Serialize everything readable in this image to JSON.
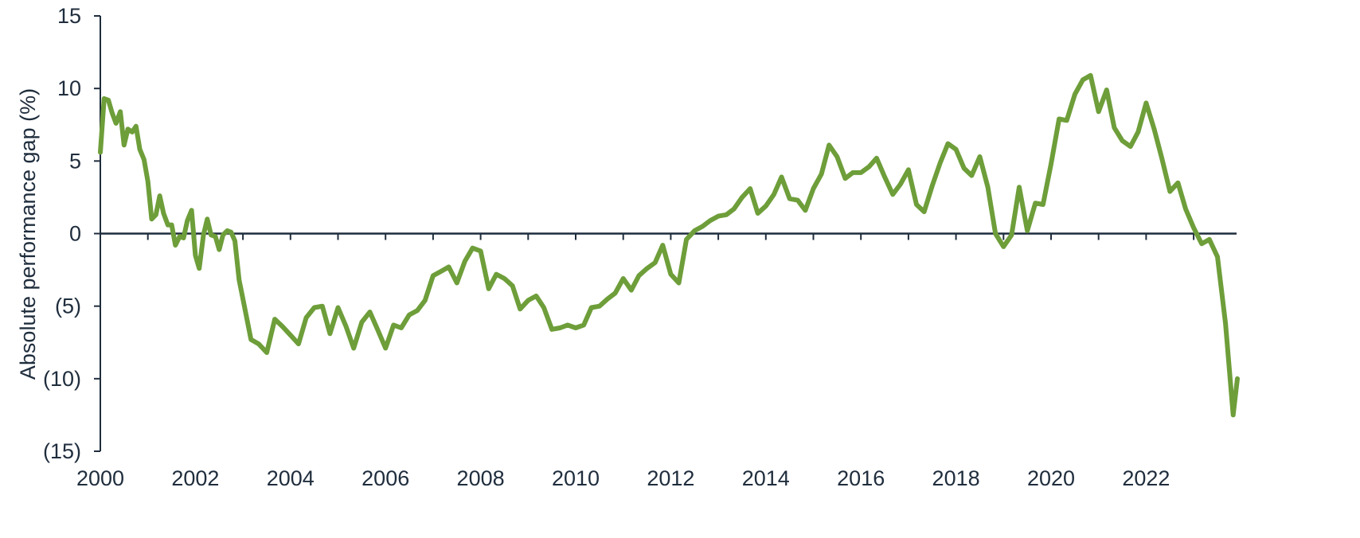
{
  "chart_data": {
    "type": "line",
    "title": "",
    "xlabel": "",
    "ylabel": "Absolute performance gap (%)",
    "xlim": [
      2000,
      2024
    ],
    "ylim": [
      -15,
      15
    ],
    "x_ticks": [
      2000,
      2002,
      2004,
      2006,
      2008,
      2010,
      2012,
      2014,
      2016,
      2018,
      2020,
      2022
    ],
    "x_tick_labels": [
      "2000",
      "2002",
      "2004",
      "2006",
      "2008",
      "2010",
      "2012",
      "2014",
      "2016",
      "2018",
      "2020",
      "2022"
    ],
    "y_ticks": [
      15,
      10,
      5,
      0,
      -5,
      -10,
      -15
    ],
    "y_tick_labels": [
      "15",
      "10",
      "5",
      "0",
      "(5)",
      "(10)",
      "(15)"
    ],
    "grid": false,
    "legend": "none",
    "line_color": "#6e9e3a",
    "axis_color": "#1f2d3d",
    "series": [
      {
        "x": [
          2000.0,
          2000.08,
          2000.17,
          2000.25,
          2000.33,
          2000.42,
          2000.5,
          2000.58,
          2000.67,
          2000.75,
          2000.83,
          2000.92,
          2001.0,
          2001.08,
          2001.17,
          2001.25,
          2001.33,
          2001.42,
          2001.5,
          2001.58,
          2001.67,
          2001.75,
          2001.83,
          2001.92,
          2002.0,
          2002.08,
          2002.17,
          2002.25,
          2002.33,
          2002.42,
          2002.5,
          2002.58,
          2002.67,
          2002.75,
          2002.83,
          2002.92,
          2003.0,
          2003.17,
          2003.33,
          2003.5,
          2003.67,
          2003.83,
          2004.0,
          2004.17,
          2004.33,
          2004.5,
          2004.67,
          2004.83,
          2005.0,
          2005.17,
          2005.33,
          2005.5,
          2005.67,
          2005.83,
          2006.0,
          2006.17,
          2006.33,
          2006.5,
          2006.67,
          2006.83,
          2007.0,
          2007.17,
          2007.33,
          2007.5,
          2007.67,
          2007.83,
          2008.0,
          2008.17,
          2008.33,
          2008.5,
          2008.67,
          2008.83,
          2009.0,
          2009.17,
          2009.33,
          2009.5,
          2009.67,
          2009.83,
          2010.0,
          2010.17,
          2010.33,
          2010.5,
          2010.67,
          2010.83,
          2011.0,
          2011.17,
          2011.33,
          2011.5,
          2011.67,
          2011.83,
          2012.0,
          2012.17,
          2012.33,
          2012.5,
          2012.67,
          2012.83,
          2013.0,
          2013.17,
          2013.33,
          2013.5,
          2013.67,
          2013.83,
          2014.0,
          2014.17,
          2014.33,
          2014.5,
          2014.67,
          2014.83,
          2015.0,
          2015.17,
          2015.33,
          2015.5,
          2015.67,
          2015.83,
          2016.0,
          2016.17,
          2016.33,
          2016.5,
          2016.67,
          2016.83,
          2017.0,
          2017.17,
          2017.33,
          2017.5,
          2017.67,
          2017.83,
          2018.0,
          2018.17,
          2018.33,
          2018.5,
          2018.67,
          2018.83,
          2019.0,
          2019.17,
          2019.33,
          2019.5,
          2019.67,
          2019.83,
          2020.0,
          2020.17,
          2020.33,
          2020.5,
          2020.67,
          2020.83,
          2021.0,
          2021.17,
          2021.33,
          2021.5,
          2021.67,
          2021.83,
          2022.0,
          2022.17,
          2022.33,
          2022.5,
          2022.67,
          2022.83,
          2023.0,
          2023.17,
          2023.33,
          2023.5,
          2023.67,
          2023.83,
          2023.92
        ],
        "values": [
          5.6,
          9.3,
          9.2,
          8.3,
          7.6,
          8.4,
          6.1,
          7.2,
          7.0,
          7.4,
          5.8,
          5.1,
          3.6,
          1.0,
          1.3,
          2.6,
          1.4,
          0.6,
          0.6,
          -0.8,
          -0.2,
          -0.3,
          0.9,
          1.6,
          -1.5,
          -2.4,
          -0.1,
          1.0,
          -0.1,
          -0.2,
          -1.1,
          -0.1,
          0.2,
          0.1,
          -0.5,
          -3.2,
          -4.5,
          -7.3,
          -7.6,
          -8.2,
          -5.9,
          -6.4,
          -7.0,
          -7.6,
          -5.8,
          -5.1,
          -5.0,
          -6.9,
          -5.1,
          -6.4,
          -7.9,
          -6.1,
          -5.4,
          -6.6,
          -7.9,
          -6.3,
          -6.5,
          -5.6,
          -5.3,
          -4.6,
          -2.9,
          -2.6,
          -2.3,
          -3.4,
          -1.9,
          -1.0,
          -1.2,
          -3.8,
          -2.8,
          -3.1,
          -3.6,
          -5.2,
          -4.6,
          -4.3,
          -5.1,
          -6.6,
          -6.5,
          -6.3,
          -6.5,
          -6.3,
          -5.1,
          -5.0,
          -4.5,
          -4.1,
          -3.1,
          -3.9,
          -2.9,
          -2.4,
          -2.0,
          -0.8,
          -2.8,
          -3.4,
          -0.4,
          0.2,
          0.5,
          0.9,
          1.2,
          1.3,
          1.7,
          2.5,
          3.1,
          1.4,
          1.9,
          2.7,
          3.9,
          2.4,
          2.3,
          1.6,
          3.1,
          4.1,
          6.1,
          5.3,
          3.8,
          4.2,
          4.2,
          4.6,
          5.2,
          3.9,
          2.7,
          3.4,
          4.4,
          2.0,
          1.5,
          3.3,
          4.9,
          6.2,
          5.8,
          4.5,
          4.0,
          5.3,
          3.2,
          0.0,
          -0.9,
          -0.1,
          3.2,
          0.2,
          2.1,
          2.0,
          4.8,
          7.9,
          7.8,
          9.6,
          10.6,
          10.9,
          8.4,
          9.9,
          7.3,
          6.4,
          6.0,
          7.0,
          9.0,
          7.2,
          5.2,
          2.9,
          3.5,
          1.7,
          0.4,
          -0.7,
          -0.4,
          -1.6,
          -6.2,
          -12.5,
          -10.0
        ],
        "values_note": ""
      }
    ]
  }
}
